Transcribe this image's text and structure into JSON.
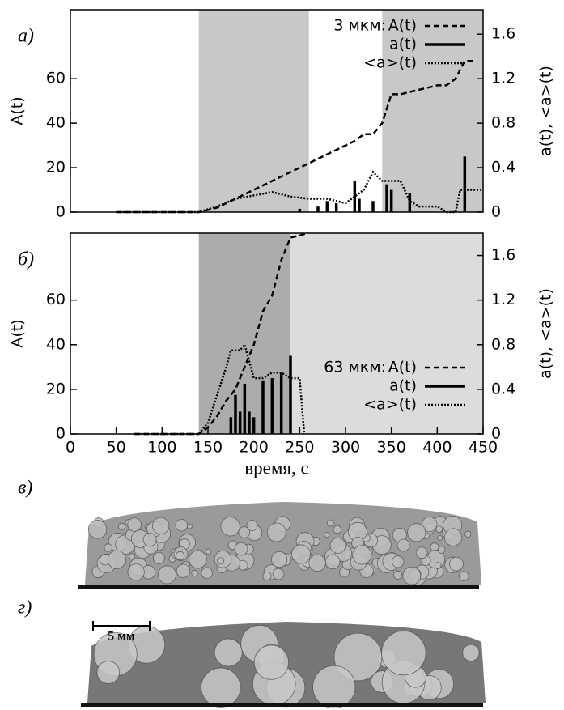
{
  "chart_data": [
    {
      "type": "line",
      "panel_label": "а)",
      "ylabel": "A(t)",
      "y2label": "a(t), <a>(t)",
      "legend_title": "3 мкм:",
      "legend": "top-right",
      "xlim": [
        0,
        450
      ],
      "ylim": [
        0,
        91
      ],
      "yticks": [
        0,
        20,
        40,
        60
      ],
      "y2lim": [
        0,
        1.82
      ],
      "y2ticks": [
        0,
        0.4,
        0.8,
        1.2,
        1.6
      ],
      "shading": [
        {
          "x": [
            140,
            260
          ],
          "color": "#c8c8c8"
        },
        {
          "x": [
            340,
            450
          ],
          "color": "#c8c8c8"
        }
      ],
      "series": [
        {
          "name": "A(t)",
          "style": "dashed",
          "color": "#000000",
          "axis": "y",
          "x": [
            50,
            140,
            150,
            160,
            170,
            180,
            190,
            200,
            210,
            220,
            230,
            240,
            250,
            260,
            270,
            280,
            290,
            300,
            310,
            320,
            330,
            340,
            350,
            360,
            370,
            380,
            390,
            400,
            410,
            420,
            430,
            440
          ],
          "values": [
            0,
            0,
            1,
            2,
            4,
            6,
            8,
            10,
            12,
            14,
            16,
            18,
            20,
            22,
            24,
            26,
            28,
            30,
            32,
            35,
            35,
            40,
            53,
            53,
            54,
            55,
            56,
            57,
            57,
            60,
            68,
            68
          ]
        },
        {
          "name": "a(t)",
          "style": "impulse",
          "color": "#000000",
          "axis": "y2",
          "x": [
            250,
            270,
            280,
            290,
            310,
            315,
            330,
            345,
            350,
            370,
            430
          ],
          "values": [
            0.03,
            0.05,
            0.1,
            0.08,
            0.28,
            0.12,
            0.1,
            0.25,
            0.2,
            0.17,
            0.5
          ]
        },
        {
          "name": "<a>(t)",
          "style": "dotted",
          "color": "#000000",
          "axis": "y2",
          "x": [
            50,
            140,
            160,
            180,
            200,
            220,
            240,
            260,
            280,
            300,
            320,
            330,
            340,
            360,
            370,
            380,
            400,
            410,
            420,
            425,
            440,
            450
          ],
          "values": [
            0,
            0,
            0.05,
            0.12,
            0.15,
            0.18,
            0.14,
            0.12,
            0.12,
            0.08,
            0.2,
            0.36,
            0.28,
            0.28,
            0.1,
            0.05,
            0.05,
            0,
            0,
            0.2,
            0.2,
            0.2
          ]
        }
      ]
    },
    {
      "type": "line",
      "panel_label": "б)",
      "ylabel": "A(t)",
      "y2label": "a(t), <a>(t)",
      "xlabel": "время, с",
      "legend_title": "63 мкм:",
      "legend": "bottom-right",
      "xlim": [
        0,
        450
      ],
      "xticks": [
        0,
        50,
        100,
        150,
        200,
        250,
        300,
        350,
        400,
        450
      ],
      "ylim": [
        0,
        90
      ],
      "yticks": [
        0,
        20,
        40,
        60
      ],
      "y2lim": [
        0,
        1.8
      ],
      "y2ticks": [
        0,
        0.4,
        0.8,
        1.2,
        1.6
      ],
      "shading": [
        {
          "x": [
            140,
            240
          ],
          "color": "#acacac"
        },
        {
          "x": [
            240,
            450
          ],
          "color": "#dcdcdc"
        }
      ],
      "series": [
        {
          "name": "A(t)",
          "style": "dashed",
          "color": "#000000",
          "axis": "y",
          "x": [
            70,
            140,
            150,
            160,
            170,
            180,
            190,
            200,
            210,
            220,
            230,
            240,
            250,
            258
          ],
          "values": [
            0,
            0,
            3,
            8,
            15,
            20,
            30,
            40,
            55,
            62,
            78,
            88,
            89,
            90
          ]
        },
        {
          "name": "a(t)",
          "style": "impulse",
          "color": "#000000",
          "axis": "y2",
          "x": [
            175,
            180,
            185,
            190,
            195,
            200,
            210,
            220,
            230,
            240
          ],
          "values": [
            0.15,
            0.35,
            0.2,
            0.45,
            0.2,
            0.15,
            0.48,
            0.5,
            0.55,
            0.7
          ]
        },
        {
          "name": "<a>(t)",
          "style": "dotted",
          "color": "#000000",
          "axis": "y2",
          "x": [
            70,
            140,
            150,
            160,
            170,
            175,
            185,
            190,
            200,
            210,
            220,
            230,
            240,
            250,
            255
          ],
          "values": [
            0,
            0,
            0.1,
            0.35,
            0.6,
            0.75,
            0.75,
            0.8,
            0.5,
            0.5,
            0.55,
            0.55,
            0.5,
            0.5,
            0
          ]
        }
      ]
    }
  ],
  "photos": [
    {
      "label": "в)"
    },
    {
      "label": "г)",
      "scale_bar": "5 мм"
    }
  ]
}
